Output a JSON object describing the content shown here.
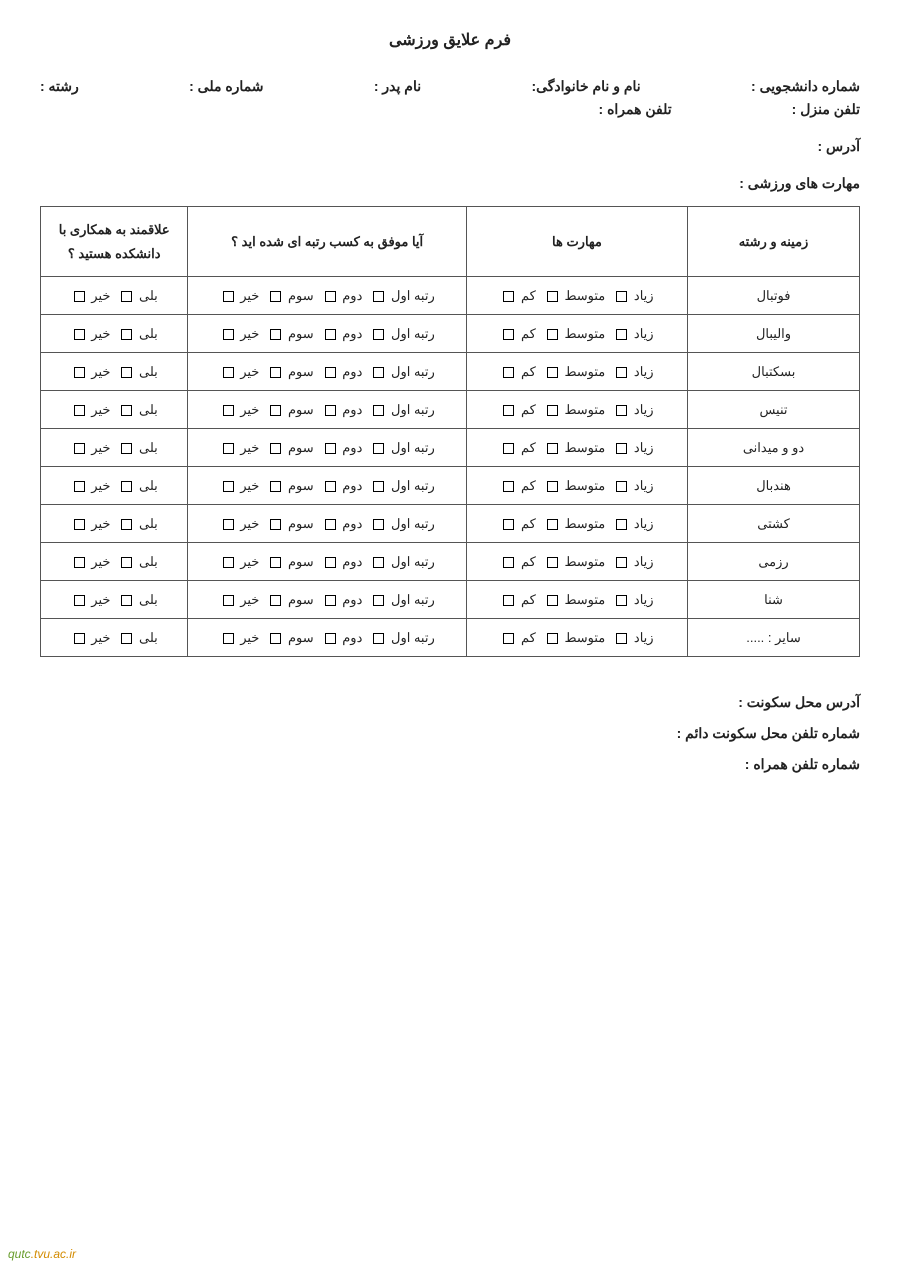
{
  "title": "فرم علایق ورزشی",
  "fields_row1": {
    "student_no": "شماره دانشجویی :",
    "full_name": "نام و نام خانوادگی:",
    "father_name": "نام پدر :",
    "national_id": "شماره ملی :",
    "major": "رشته :"
  },
  "fields_row2": {
    "home_phone": "تلفن منزل :",
    "mobile": "تلفن همراه :"
  },
  "address_label": "آدرس :",
  "skills_section_label": "مهارت های ورزشی :",
  "table": {
    "headers": {
      "sport": "زمینه و رشته",
      "skills": "مهارت ها",
      "rank": "آیا موفق به کسب رتبه ای شده اید ؟",
      "coop": "علاقمند به همکاری با دانشکده هستید ؟"
    },
    "skill_options": [
      "زیاد",
      "متوسط",
      "کم"
    ],
    "rank_options": [
      "رتبه اول",
      "دوم",
      "سوم",
      "خیر"
    ],
    "coop_options": [
      "بلی",
      "خیر"
    ],
    "rows": [
      "فوتبال",
      "والیبال",
      "بسکتبال",
      "تنیس",
      "دو و میدانی",
      "هندبال",
      "کشتی",
      "رزمی",
      "شنا",
      "سایر : ....."
    ]
  },
  "bottom": {
    "residence_address": "آدرس محل سکونت :",
    "residence_phone": "شماره تلفن محل سکونت دائم :",
    "mobile2": "شماره تلفن همراه :"
  },
  "footer": {
    "part1": "qutc",
    "part2": ".tvu.ac.ir"
  },
  "colors": {
    "border": "#555555",
    "text": "#222222",
    "footer_green": "#6a9e2e",
    "footer_orange": "#d38b00",
    "background": "#ffffff"
  }
}
